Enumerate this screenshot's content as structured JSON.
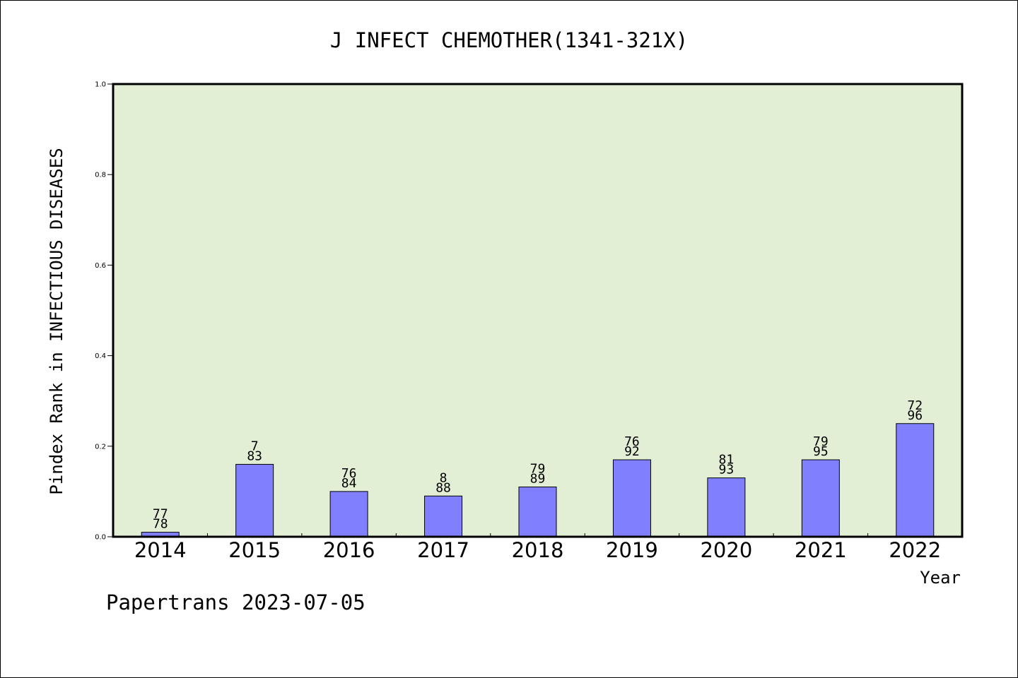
{
  "chart_data": {
    "type": "bar",
    "title": "J INFECT CHEMOTHER(1341-321X)",
    "xlabel": "Year",
    "ylabel": "Pindex Rank in INFECTIOUS DISEASES",
    "ylim": [
      0,
      1.0
    ],
    "yticks": [
      "0.0",
      "0.2",
      "0.4",
      "0.6",
      "0.8",
      "1.0"
    ],
    "categories": [
      "2014",
      "2015",
      "2016",
      "2017",
      "2018",
      "2019",
      "2020",
      "2021",
      "2022"
    ],
    "values": [
      0.01,
      0.16,
      0.1,
      0.09,
      0.11,
      0.17,
      0.13,
      0.17,
      0.25
    ],
    "labels_top": [
      "77",
      "7",
      "76",
      "8",
      "79",
      "76",
      "81",
      "79",
      "72"
    ],
    "labels_bottom": [
      "78",
      "83",
      "84",
      "88",
      "89",
      "92",
      "93",
      "95",
      "96"
    ],
    "grid": false,
    "colors": {
      "plot_background": "#e2efd5",
      "bar_fill": "#8080ff",
      "bar_stroke": "#000000",
      "axes": "#000000"
    }
  },
  "footer": {
    "text": "Papertrans 2023-07-05"
  }
}
